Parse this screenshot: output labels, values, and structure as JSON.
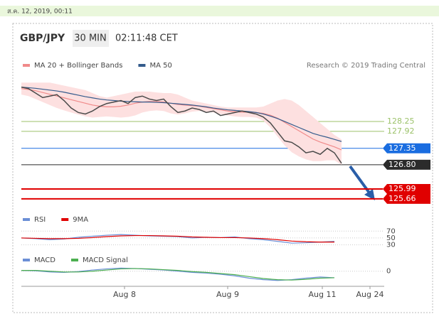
{
  "header": {
    "timestamp": "ส.ค. 12, 2019, 00:11",
    "symbol": "GBP/JPY",
    "interval": "30 MIN",
    "time": "02:11:48 CET",
    "credit": "Research © 2019 Trading Central"
  },
  "chart_data": [
    {
      "type": "line",
      "x": [
        0,
        1,
        2,
        3,
        4,
        5,
        6,
        7,
        8,
        9,
        10,
        11,
        12,
        13,
        14,
        15,
        16,
        17,
        18,
        19,
        20,
        21,
        22,
        23,
        24,
        25,
        26,
        27,
        28,
        29,
        30,
        31,
        32,
        33,
        34,
        35,
        36,
        37,
        38,
        39,
        40,
        41,
        42,
        43,
        44,
        45
      ],
      "xlim": [
        0,
        51
      ],
      "xticks": [
        {
          "value": 14.5,
          "label": "Aug 8"
        },
        {
          "value": 29,
          "label": "Aug 9"
        },
        {
          "value": 42.3,
          "label": "Aug 11"
        },
        {
          "value": 49,
          "label": "Aug 24"
        }
      ],
      "ylim": [
        125.3,
        129.7
      ],
      "price": {
        "color": "#4a4a4a",
        "values": [
          129.4,
          129.35,
          129.2,
          129.05,
          129.1,
          129.15,
          128.95,
          128.7,
          128.55,
          128.5,
          128.6,
          128.75,
          128.85,
          128.9,
          128.95,
          128.85,
          129.05,
          129.1,
          129.0,
          128.95,
          129.0,
          128.75,
          128.55,
          128.6,
          128.7,
          128.65,
          128.55,
          128.6,
          128.45,
          128.5,
          128.55,
          128.6,
          128.55,
          128.5,
          128.4,
          128.2,
          127.9,
          127.6,
          127.55,
          127.4,
          127.2,
          127.25,
          127.15,
          127.35,
          127.2,
          126.85
        ]
      },
      "series": [
        {
          "name": "MA 20 + Bollinger Bands",
          "color": "#f08a8a",
          "band_color": "#fde0e0",
          "values": [
            129.35,
            129.32,
            129.28,
            129.22,
            129.16,
            129.1,
            129.04,
            128.98,
            128.92,
            128.86,
            128.8,
            128.76,
            128.74,
            128.74,
            128.76,
            128.8,
            128.86,
            128.9,
            128.92,
            128.92,
            128.9,
            128.86,
            128.82,
            128.8,
            128.78,
            128.76,
            128.72,
            128.68,
            128.64,
            128.6,
            128.58,
            128.56,
            128.56,
            128.55,
            128.52,
            128.46,
            128.36,
            128.22,
            128.08,
            127.94,
            127.8,
            127.66,
            127.56,
            127.48,
            127.4,
            127.3
          ],
          "band_upper": [
            129.55,
            129.55,
            129.55,
            129.55,
            129.55,
            129.5,
            129.45,
            129.4,
            129.35,
            129.3,
            129.2,
            129.1,
            129.05,
            129.1,
            129.15,
            129.2,
            129.25,
            129.25,
            129.25,
            129.22,
            129.2,
            129.2,
            129.15,
            129.05,
            128.95,
            128.9,
            128.85,
            128.8,
            128.75,
            128.72,
            128.72,
            128.72,
            128.72,
            128.72,
            128.75,
            128.85,
            128.95,
            129.0,
            128.95,
            128.8,
            128.6,
            128.4,
            128.2,
            128.0,
            127.8,
            127.65
          ],
          "band_lower": [
            129.15,
            129.1,
            129.0,
            128.9,
            128.8,
            128.7,
            128.62,
            128.55,
            128.48,
            128.42,
            128.38,
            128.4,
            128.42,
            128.4,
            128.38,
            128.4,
            128.45,
            128.55,
            128.6,
            128.62,
            128.6,
            128.52,
            128.48,
            128.52,
            128.58,
            128.6,
            128.58,
            128.55,
            128.5,
            128.45,
            128.42,
            128.4,
            128.4,
            128.38,
            128.28,
            128.05,
            127.75,
            127.45,
            127.22,
            127.08,
            126.98,
            126.92,
            126.92,
            126.95,
            126.95,
            126.8
          ]
        },
        {
          "name": "MA 50",
          "color": "#345b8c",
          "values": [
            129.4,
            129.38,
            129.36,
            129.33,
            129.3,
            129.27,
            129.23,
            129.18,
            129.13,
            129.08,
            129.04,
            129.0,
            128.97,
            128.95,
            128.93,
            128.92,
            128.91,
            128.9,
            128.9,
            128.89,
            128.88,
            128.86,
            128.84,
            128.82,
            128.8,
            128.77,
            128.74,
            128.7,
            128.67,
            128.64,
            128.62,
            128.6,
            128.58,
            128.55,
            128.5,
            128.43,
            128.35,
            128.25,
            128.15,
            128.05,
            127.95,
            127.85,
            127.78,
            127.72,
            127.65,
            127.58
          ]
        }
      ],
      "levels": [
        {
          "value": 128.25,
          "label": "128.25",
          "color": "#9cc26a",
          "tag": false
        },
        {
          "value": 127.92,
          "label": "127.92",
          "color": "#9cc26a",
          "tag": false
        },
        {
          "value": 127.35,
          "label": "127.35",
          "color": "#1a6de0",
          "tag": true
        },
        {
          "value": 126.8,
          "label": "126.80",
          "color": "#2b2b2b",
          "tag": true
        },
        {
          "value": 125.99,
          "label": "125.99",
          "color": "#e00000",
          "tag": true
        },
        {
          "value": 125.66,
          "label": "125.66",
          "color": "#e00000",
          "tag": true
        }
      ]
    },
    {
      "type": "line",
      "x": [
        0,
        2,
        4,
        6,
        8,
        10,
        12,
        14,
        16,
        18,
        20,
        22,
        24,
        26,
        28,
        30,
        32,
        34,
        36,
        38,
        40,
        42,
        44
      ],
      "xlim": [
        0,
        51
      ],
      "ylim": [
        23,
        85
      ],
      "yticks": [
        70,
        50,
        30
      ],
      "series": [
        {
          "name": "RSI",
          "color": "#6b8fd6",
          "values": [
            50,
            48,
            45,
            47,
            52,
            55,
            58,
            60,
            58,
            56,
            55,
            54,
            50,
            52,
            51,
            53,
            48,
            45,
            40,
            35,
            36,
            38,
            40
          ]
        },
        {
          "name": "9MA",
          "color": "#e00000",
          "values": [
            50,
            49,
            48,
            48,
            49,
            51,
            54,
            56,
            57,
            57,
            56,
            55,
            53,
            52,
            51,
            51,
            50,
            48,
            45,
            41,
            39,
            38,
            38
          ]
        }
      ]
    },
    {
      "type": "line",
      "x": [
        0,
        2,
        4,
        6,
        8,
        10,
        12,
        14,
        16,
        18,
        20,
        22,
        24,
        26,
        28,
        30,
        32,
        34,
        36,
        38,
        40,
        42,
        44
      ],
      "xlim": [
        0,
        51
      ],
      "ylim": [
        -0.3,
        0.4
      ],
      "yticks": [
        0
      ],
      "series": [
        {
          "name": "MACD",
          "color": "#6b8fd6",
          "values": [
            0.02,
            0.01,
            -0.02,
            -0.03,
            -0.01,
            0.03,
            0.06,
            0.08,
            0.07,
            0.05,
            0.03,
            0.0,
            -0.03,
            -0.05,
            -0.08,
            -0.12,
            -0.18,
            -0.22,
            -0.24,
            -0.22,
            -0.18,
            -0.15,
            -0.17
          ]
        },
        {
          "name": "MACD Signal",
          "color": "#4caf50",
          "values": [
            0.02,
            0.02,
            0.0,
            -0.02,
            -0.02,
            0.0,
            0.03,
            0.06,
            0.07,
            0.06,
            0.04,
            0.02,
            -0.01,
            -0.03,
            -0.06,
            -0.09,
            -0.14,
            -0.19,
            -0.22,
            -0.23,
            -0.21,
            -0.18,
            -0.17
          ]
        }
      ]
    }
  ]
}
